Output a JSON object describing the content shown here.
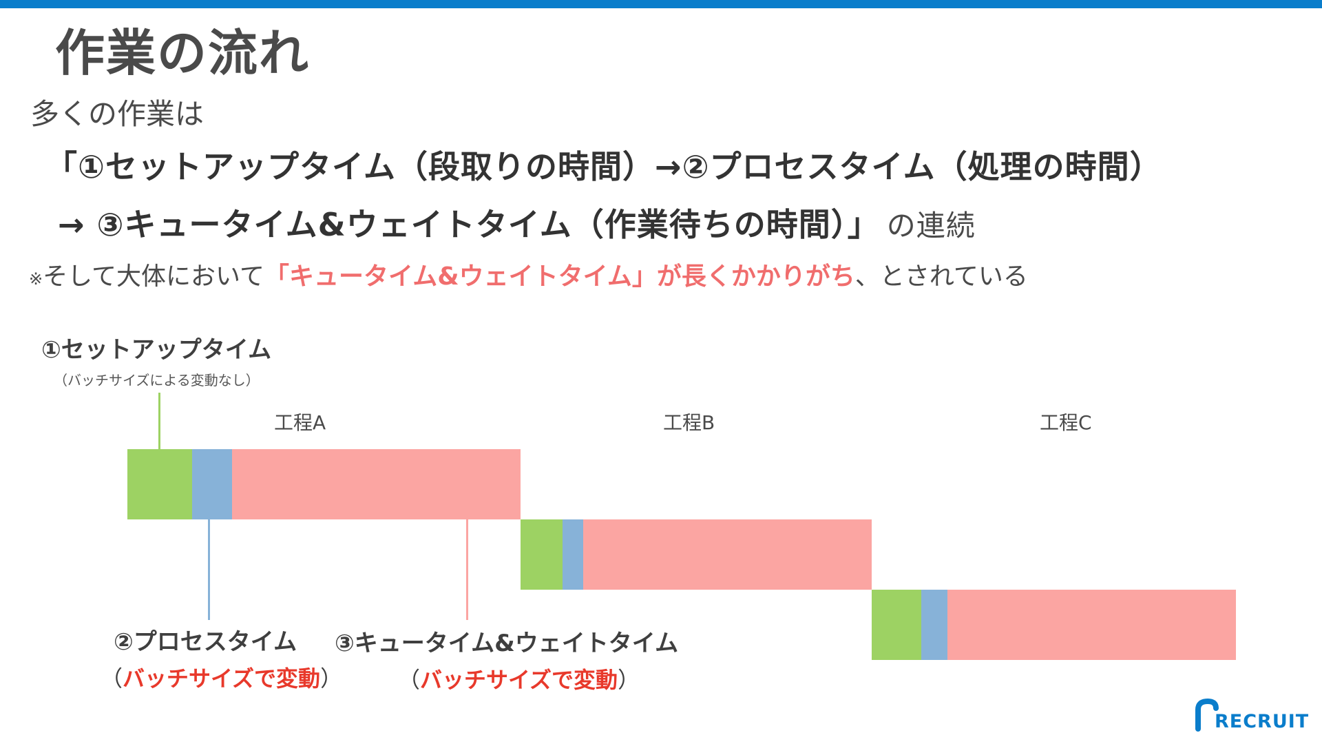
{
  "title": "作業の流れ",
  "intro": "多くの作業は",
  "line1": "「①セットアップタイム（段取りの時間）→②プロセスタイム（処理の時間）",
  "line2": {
    "main": "→ ③キュータイム&ウェイトタイム（作業待ちの時間）」",
    "suffix": "の連続"
  },
  "note": {
    "mark": "※",
    "pre": "そして大体において",
    "emph": "「キュータイム&ウェイトタイム」が長くかかりがち",
    "post": "、とされている"
  },
  "diagram": {
    "setup_label": "①セットアップタイム",
    "setup_sub": "（バッチサイズによる変動なし）",
    "process_label": "②プロセスタイム",
    "process_sub_open": "（",
    "process_sub": "バッチサイズで変動",
    "process_sub_close": "）",
    "queue_label": "③キュータイム&ウェイトタイム",
    "queue_sub_open": "（",
    "queue_sub": "バッチサイズで変動",
    "queue_sub_close": "）",
    "processes": [
      "工程A",
      "工程B",
      "工程C"
    ],
    "colors": {
      "setup": "#9dd263",
      "process": "#87b2d8",
      "queue": "#fba5a2"
    }
  },
  "logo": {
    "text": "RECRUIT",
    "color": "#0a7dcb"
  }
}
